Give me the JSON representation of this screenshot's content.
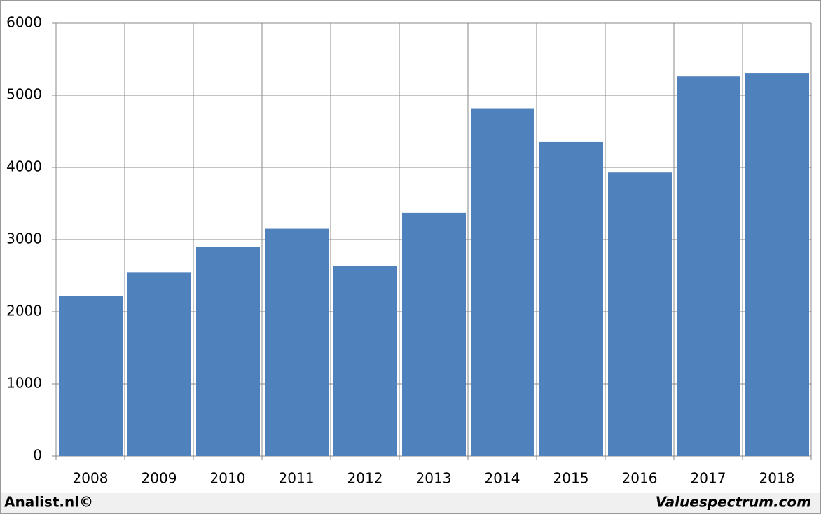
{
  "chart_data": {
    "type": "bar",
    "categories": [
      "2008",
      "2009",
      "2010",
      "2011",
      "2012",
      "2013",
      "2014",
      "2015",
      "2016",
      "2017",
      "2018"
    ],
    "values": [
      2220,
      2550,
      2900,
      3150,
      2640,
      3370,
      4820,
      4360,
      3930,
      5260,
      5310
    ],
    "color": "#4f81bd",
    "ylim": [
      0,
      6000
    ],
    "yticks": [
      0,
      1000,
      2000,
      3000,
      4000,
      5000,
      6000
    ],
    "grid": true
  },
  "footer": {
    "left": "Analist.nl©",
    "right": "Valuespectrum.com"
  }
}
